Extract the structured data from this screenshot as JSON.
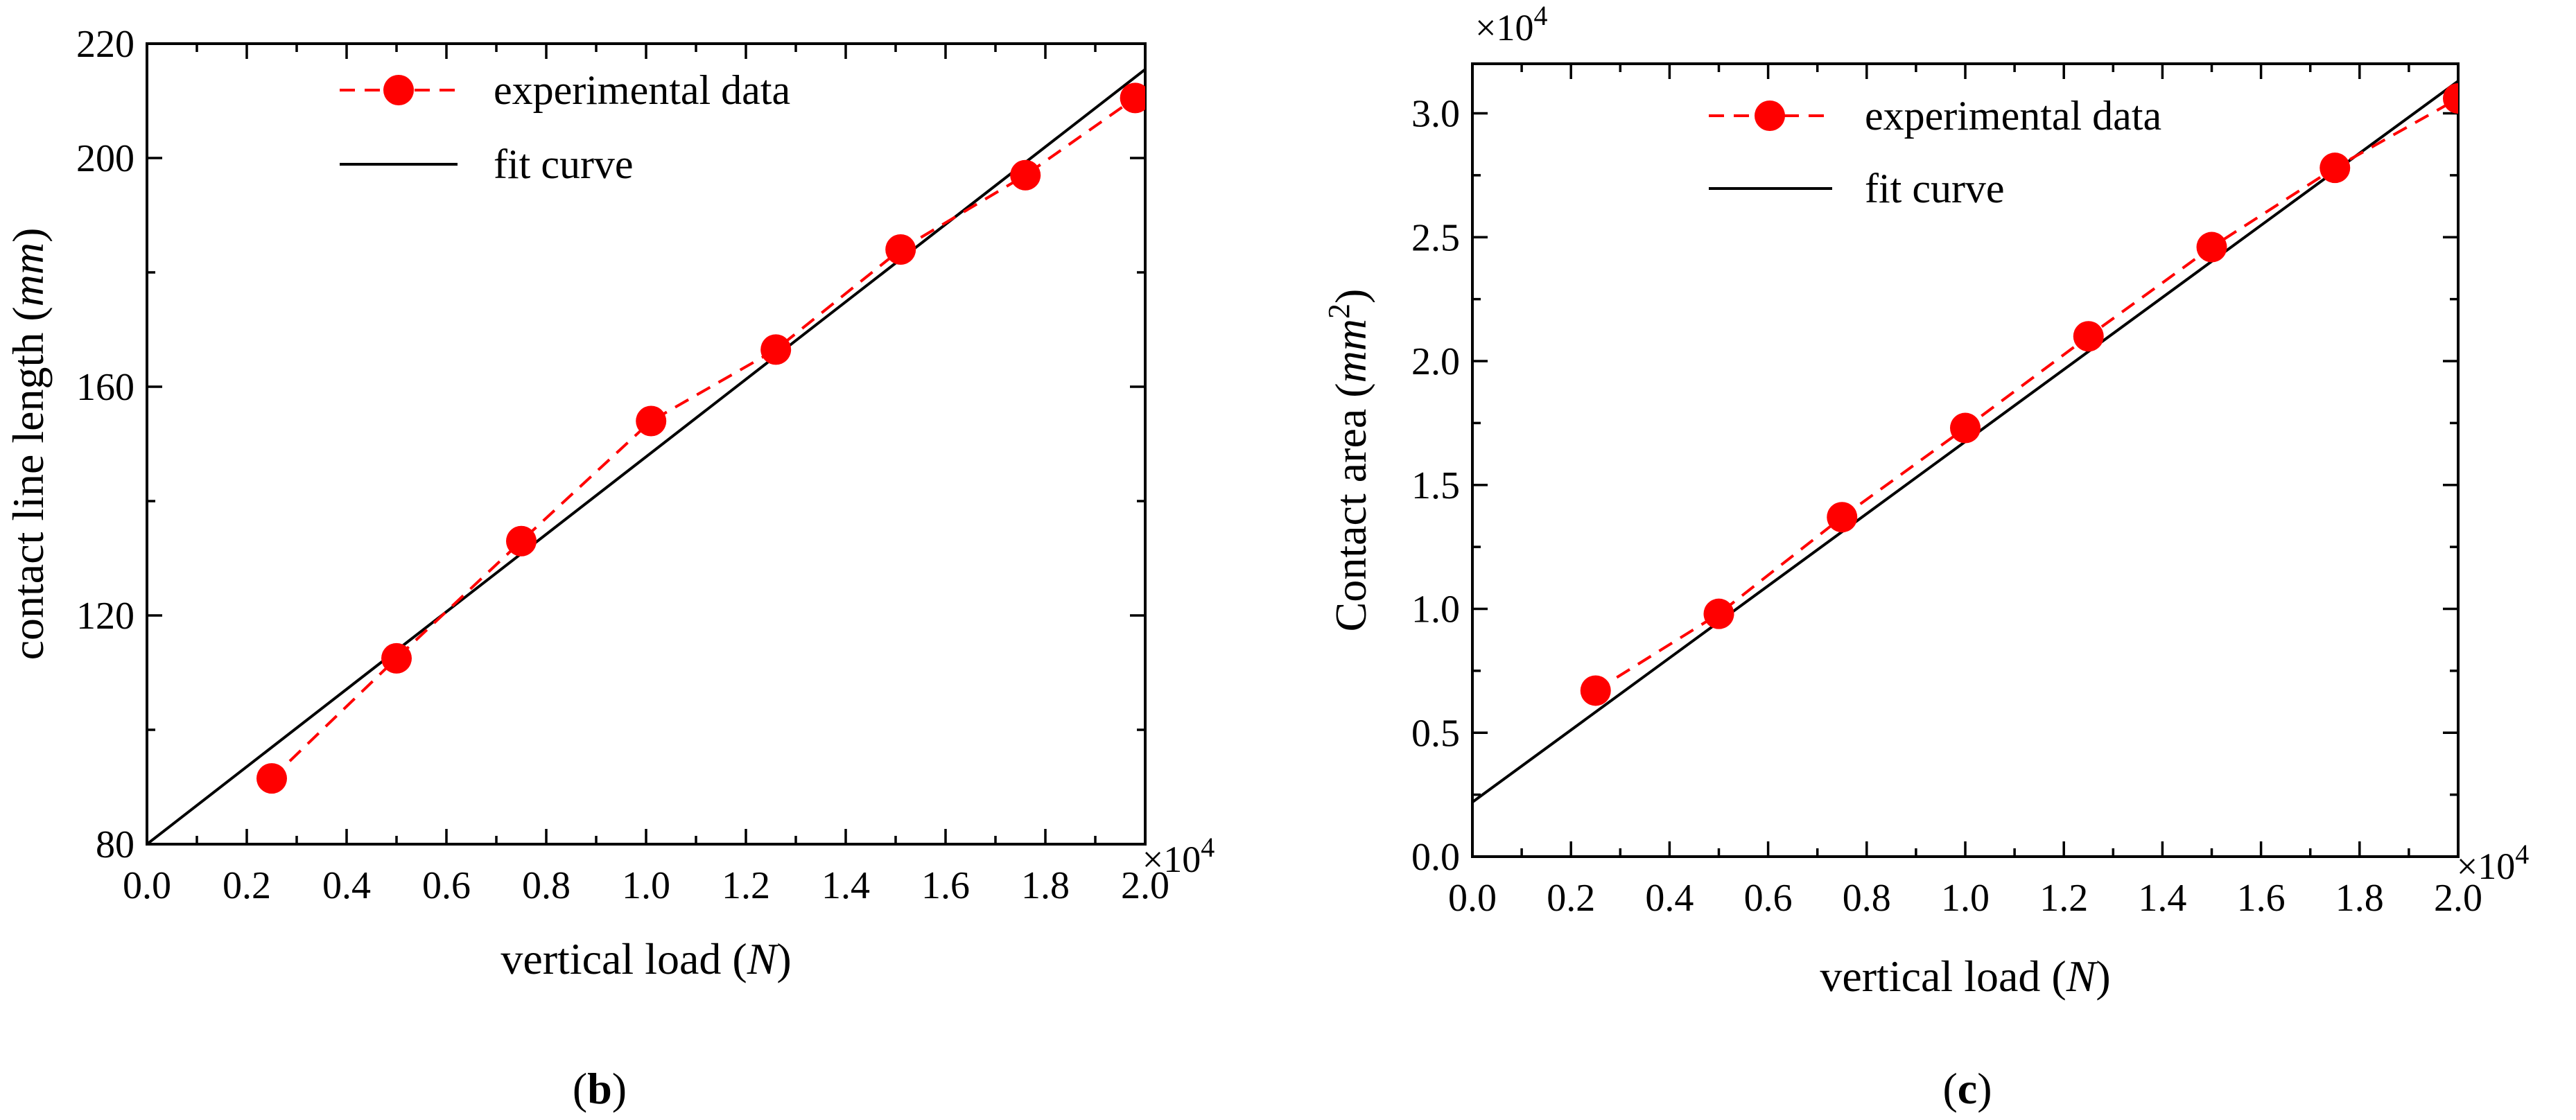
{
  "figure": {
    "panels": [
      "b",
      "c"
    ]
  },
  "chart_data": [
    {
      "panel": "b",
      "type": "line",
      "panel_label": "b",
      "xlabel_text": "vertical load (",
      "xlabel_var": "N",
      "xlabel_close": ")",
      "ylabel_text": "contact line length (",
      "ylabel_var": "mm",
      "ylabel_close": ")",
      "ylabel_sup": "",
      "x_multiplier_base": "×10",
      "x_multiplier_exp": "4",
      "y_multiplier_base": "",
      "y_multiplier_exp": "",
      "xlim": [
        0.0,
        2.0
      ],
      "ylim": [
        80,
        220
      ],
      "x_ticks": [
        0.0,
        0.2,
        0.4,
        0.6,
        0.8,
        1.0,
        1.2,
        1.4,
        1.6,
        1.8,
        2.0
      ],
      "x_tick_labels": [
        "0.0",
        "0.2",
        "0.4",
        "0.6",
        "0.8",
        "1.0",
        "1.2",
        "1.4",
        "1.6",
        "1.8",
        "2.0"
      ],
      "x_minor_ticks": [
        0.1,
        0.3,
        0.5,
        0.7,
        0.9,
        1.1,
        1.3,
        1.5,
        1.7,
        1.9
      ],
      "y_ticks": [
        80,
        120,
        160,
        200,
        220
      ],
      "y_tick_labels": [
        "80",
        "120",
        "160",
        "200",
        "220"
      ],
      "y_minor_ticks": [
        100,
        140,
        180
      ],
      "legend_position": "top-center",
      "series": [
        {
          "name": "experimental data",
          "style": "red dashed line with circle markers",
          "x": [
            0.25,
            0.5,
            0.75,
            1.01,
            1.26,
            1.51,
            1.76,
            1.98
          ],
          "y": [
            91.5,
            112.5,
            133.0,
            154.0,
            166.5,
            184.0,
            197.0,
            210.5
          ]
        },
        {
          "name": "fit curve",
          "style": "black solid line",
          "x": [
            0.0,
            2.0
          ],
          "y": [
            80.0,
            215.5
          ]
        }
      ]
    },
    {
      "panel": "c",
      "type": "line",
      "panel_label": "c",
      "xlabel_text": "vertical load (",
      "xlabel_var": "N",
      "xlabel_close": ")",
      "ylabel_text": "Contact area (",
      "ylabel_var": "mm",
      "ylabel_close": ")",
      "ylabel_sup": "2",
      "x_multiplier_base": "×10",
      "x_multiplier_exp": "4",
      "y_multiplier_base": "×10",
      "y_multiplier_exp": "4",
      "xlim": [
        0.0,
        2.0
      ],
      "ylim": [
        0.0,
        3.2
      ],
      "x_ticks": [
        0.0,
        0.2,
        0.4,
        0.6,
        0.8,
        1.0,
        1.2,
        1.4,
        1.6,
        1.8,
        2.0
      ],
      "x_tick_labels": [
        "0.0",
        "0.2",
        "0.4",
        "0.6",
        "0.8",
        "1.0",
        "1.2",
        "1.4",
        "1.6",
        "1.8",
        "2.0"
      ],
      "x_minor_ticks": [
        0.1,
        0.3,
        0.5,
        0.7,
        0.9,
        1.1,
        1.3,
        1.5,
        1.7,
        1.9
      ],
      "y_ticks": [
        0.0,
        0.5,
        1.0,
        1.5,
        2.0,
        2.5,
        3.0
      ],
      "y_tick_labels": [
        "0.0",
        "0.5",
        "1.0",
        "1.5",
        "2.0",
        "2.5",
        "3.0"
      ],
      "y_minor_ticks": [
        0.25,
        0.75,
        1.25,
        1.75,
        2.25,
        2.75
      ],
      "legend_position": "top-center",
      "series": [
        {
          "name": "experimental data",
          "style": "red dashed line with circle markers",
          "x": [
            0.25,
            0.5,
            0.75,
            1.0,
            1.25,
            1.5,
            1.75,
            2.0
          ],
          "y": [
            0.67,
            0.98,
            1.37,
            1.73,
            2.1,
            2.46,
            2.78,
            3.06
          ]
        },
        {
          "name": "fit curve",
          "style": "black solid line",
          "x": [
            0.0,
            2.0
          ],
          "y": [
            0.22,
            3.13
          ]
        }
      ]
    }
  ]
}
